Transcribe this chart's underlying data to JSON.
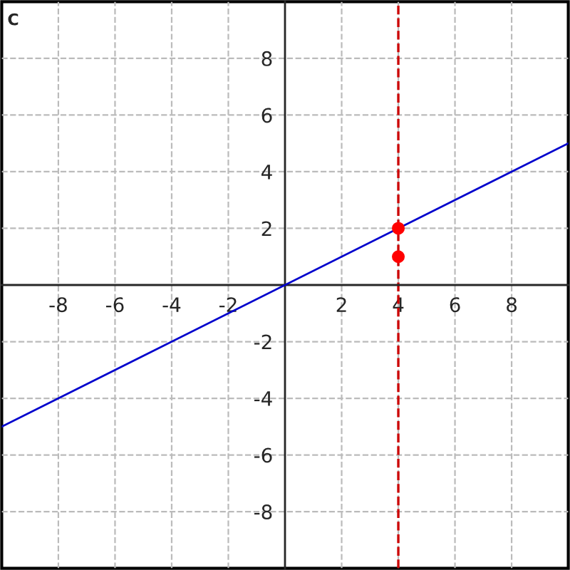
{
  "chart_data": {
    "type": "line",
    "annotations": [
      "C"
    ],
    "series": [
      {
        "color": "#0000cc",
        "x": [
          -10,
          10
        ],
        "values": [
          -5,
          5
        ]
      },
      {
        "type": "scatter",
        "color": "#ff0000",
        "marker": "circle",
        "x": [
          4,
          4
        ],
        "values": [
          2,
          1
        ]
      }
    ],
    "ref_lines": [
      {
        "axis": "x",
        "value": 4,
        "label": null,
        "color": "#cc0000",
        "line_style": "dashed"
      }
    ],
    "xlim": [
      -10,
      10
    ],
    "ylim": [
      -10,
      10
    ],
    "xticks": [
      -8,
      -6,
      -4,
      -2,
      2,
      4,
      6,
      8
    ],
    "yticks": [
      -8,
      -6,
      -4,
      -2,
      2,
      4,
      6,
      8
    ],
    "grid": true
  }
}
